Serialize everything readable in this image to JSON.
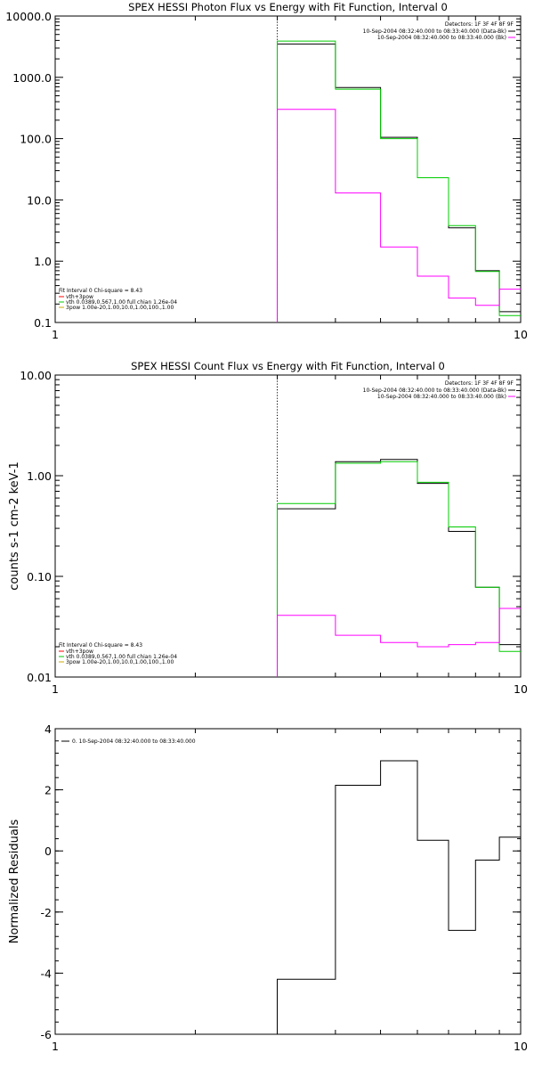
{
  "chart_data": [
    {
      "type": "line",
      "title": "SPEX HESSI Photon Flux vs Energy with Fit Function, Interval 0",
      "xscale": "log",
      "yscale": "log",
      "xlim": [
        1,
        10
      ],
      "ylim": [
        0.1,
        10000
      ],
      "x_tick_labels": [
        "1",
        "10"
      ],
      "y_tick_labels": [
        "0.1",
        "1.0",
        "10.0",
        "100.0",
        "1000.0",
        "10000.0"
      ],
      "legend_right": {
        "header": "Detectors: 1F 3F 4F 8F 9F",
        "entries": [
          {
            "text": "10-Sep-2004 08:32:40.000 to 08:33:40.000 (Data-Bk)",
            "color": "#000000"
          },
          {
            "text": "10-Sep-2004 08:32:40.000 to 08:33:40.000 (Bk)",
            "color": "#ff00ff"
          }
        ]
      },
      "legend_left": {
        "header": "Fit Interval 0   Chi-square = 8.43",
        "entries": [
          {
            "text": "vth+3pow",
            "color": "#ff0000"
          },
          {
            "text": "vth 0.0389,0.567,1.00  full chian 1.26e-04",
            "color": "#00cc00"
          },
          {
            "text": "3pow 1.00e-20,1.00,10.0,1.00,100.,1.00",
            "color": "#ccaa00"
          }
        ]
      },
      "vline_x": 3.0,
      "edges": [
        3.0,
        4.0,
        5.0,
        6.0,
        7.0,
        8.0,
        9.0,
        10.0
      ],
      "series": [
        {
          "color": "#000000",
          "values": [
            3500,
            680,
            105,
            23,
            3.5,
            0.7,
            0.15
          ]
        },
        {
          "color": "#00cc00",
          "values": [
            3900,
            640,
            100,
            23,
            3.8,
            0.68,
            0.13
          ]
        },
        {
          "color": "#ff00ff",
          "values": [
            300,
            13,
            1.7,
            0.57,
            0.25,
            0.19,
            0.35
          ]
        }
      ]
    },
    {
      "type": "line",
      "title": "SPEX HESSI Count Flux vs Energy with Fit Function, Interval 0",
      "ylabel": "counts s-1 cm-2 keV-1",
      "xscale": "log",
      "yscale": "log",
      "xlim": [
        1,
        10
      ],
      "ylim": [
        0.01,
        10
      ],
      "x_tick_labels": [
        "1",
        "10"
      ],
      "y_tick_labels": [
        "0.01",
        "0.10",
        "1.00",
        "10.00"
      ],
      "legend_right": {
        "header": "Detectors: 1F 3F 4F 8F 9F",
        "entries": [
          {
            "text": "10-Sep-2004 08:32:40.000 to 08:33:40.000 (Data-Bk)",
            "color": "#000000"
          },
          {
            "text": "10-Sep-2004 08:32:40.000 to 08:33:40.000 (Bk)",
            "color": "#ff00ff"
          }
        ]
      },
      "legend_left": {
        "header": "Fit Interval 0   Chi-square = 8.43",
        "entries": [
          {
            "text": "vth+3pow",
            "color": "#ff0000"
          },
          {
            "text": "vth 0.0389,0.567,1.00  full chian 1.26e-04",
            "color": "#00cc00"
          },
          {
            "text": "3pow 1.00e-20,1.00,10.0,1.00,100.,1.00",
            "color": "#ccaa00"
          }
        ]
      },
      "vline_x": 3.0,
      "edges": [
        3.0,
        4.0,
        5.0,
        6.0,
        7.0,
        8.0,
        9.0,
        10.0
      ],
      "series": [
        {
          "color": "#000000",
          "values": [
            0.47,
            1.38,
            1.45,
            0.84,
            0.28,
            0.078,
            0.021
          ]
        },
        {
          "color": "#00cc00",
          "values": [
            0.53,
            1.33,
            1.38,
            0.86,
            0.31,
            0.078,
            0.018
          ]
        },
        {
          "color": "#ff00ff",
          "values": [
            0.041,
            0.026,
            0.022,
            0.02,
            0.021,
            0.022,
            0.048
          ]
        }
      ]
    },
    {
      "type": "line",
      "ylabel": "Normalized Residuals",
      "xscale": "log",
      "yscale": "linear",
      "xlim": [
        1,
        10
      ],
      "ylim": [
        -6,
        4
      ],
      "x_tick_labels": [
        "1",
        "10"
      ],
      "y_tick_labels": [
        "-6",
        "-4",
        "-2",
        "0",
        "2",
        "4"
      ],
      "legend": {
        "text": "0. 10-Sep-2004 08:32:40.000 to 08:33:40.000",
        "color": "#000000"
      },
      "edges": [
        3.0,
        4.0,
        5.0,
        6.0,
        7.0,
        8.0,
        9.0,
        10.0
      ],
      "series": [
        {
          "color": "#000000",
          "values": [
            -4.2,
            2.15,
            2.95,
            0.35,
            -2.6,
            -0.3,
            0.45
          ]
        }
      ]
    }
  ]
}
